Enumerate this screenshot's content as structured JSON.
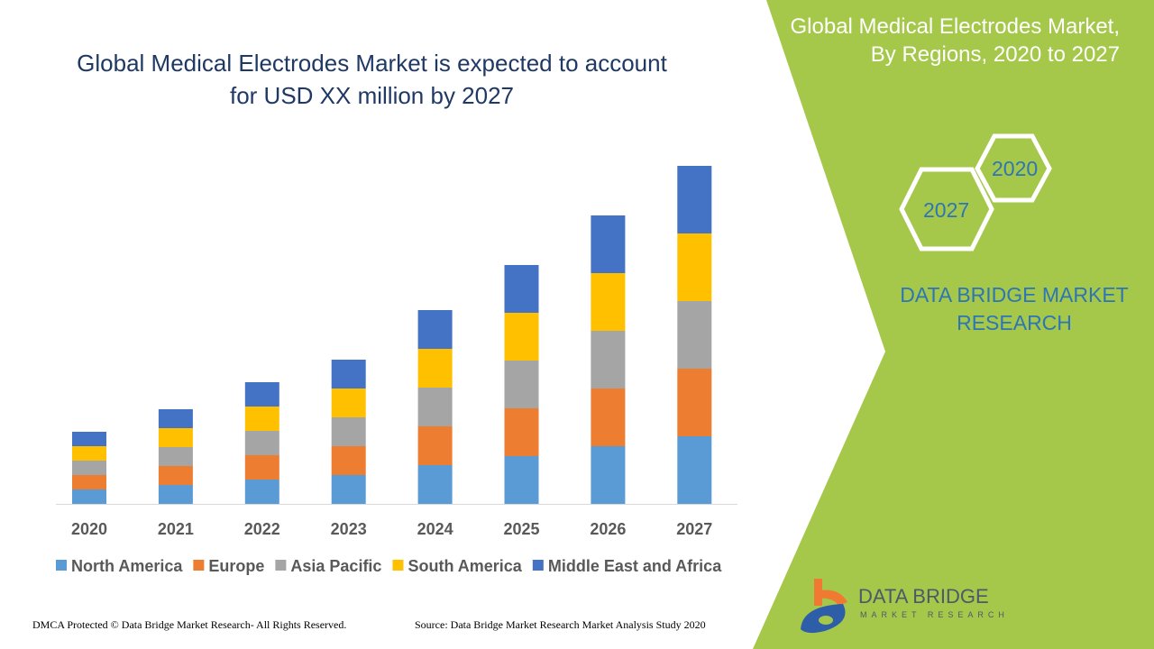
{
  "header": {
    "title_line1": "Global Medical Electrodes Market is expected to account",
    "title_line2": "for USD XX million by 2027"
  },
  "side_panel": {
    "title_line1": "Global Medical Electrodes Market,",
    "title_line2": "By Regions, 2020 to 2027",
    "hex_labels": [
      "2020",
      "2027"
    ],
    "brand_line1": "DATA BRIDGE MARKET",
    "brand_line2": "RESEARCH",
    "logo_text": "DATA BRIDGE",
    "logo_subtext": "MARKET RESEARCH",
    "panel_color": "#a5c84a"
  },
  "footer": {
    "left": "DMCA Protected © Data Bridge Market Research- All Rights Reserved.",
    "right": "Source: Data Bridge Market Research Market Analysis Study 2020"
  },
  "chart_data": {
    "type": "bar",
    "stacked": true,
    "title": "",
    "xlabel": "",
    "ylabel": "",
    "grid": false,
    "legend_position": "bottom",
    "categories": [
      "2020",
      "2021",
      "2022",
      "2023",
      "2024",
      "2025",
      "2026",
      "2027"
    ],
    "series": [
      {
        "name": "North America",
        "color": "#5b9bd5",
        "values": [
          16,
          21,
          27,
          32,
          43,
          53,
          64,
          75
        ]
      },
      {
        "name": "Europe",
        "color": "#ed7d31",
        "values": [
          16,
          21,
          27,
          32,
          43,
          53,
          64,
          75
        ]
      },
      {
        "name": "Asia Pacific",
        "color": "#a5a5a5",
        "values": [
          16,
          21,
          27,
          32,
          43,
          53,
          64,
          75
        ]
      },
      {
        "name": "South America",
        "color": "#ffc000",
        "values": [
          16,
          21,
          27,
          32,
          43,
          53,
          64,
          75
        ]
      },
      {
        "name": "Middle East and Africa",
        "color": "#4472c4",
        "values": [
          16,
          21,
          27,
          32,
          43,
          53,
          64,
          75
        ]
      }
    ]
  }
}
